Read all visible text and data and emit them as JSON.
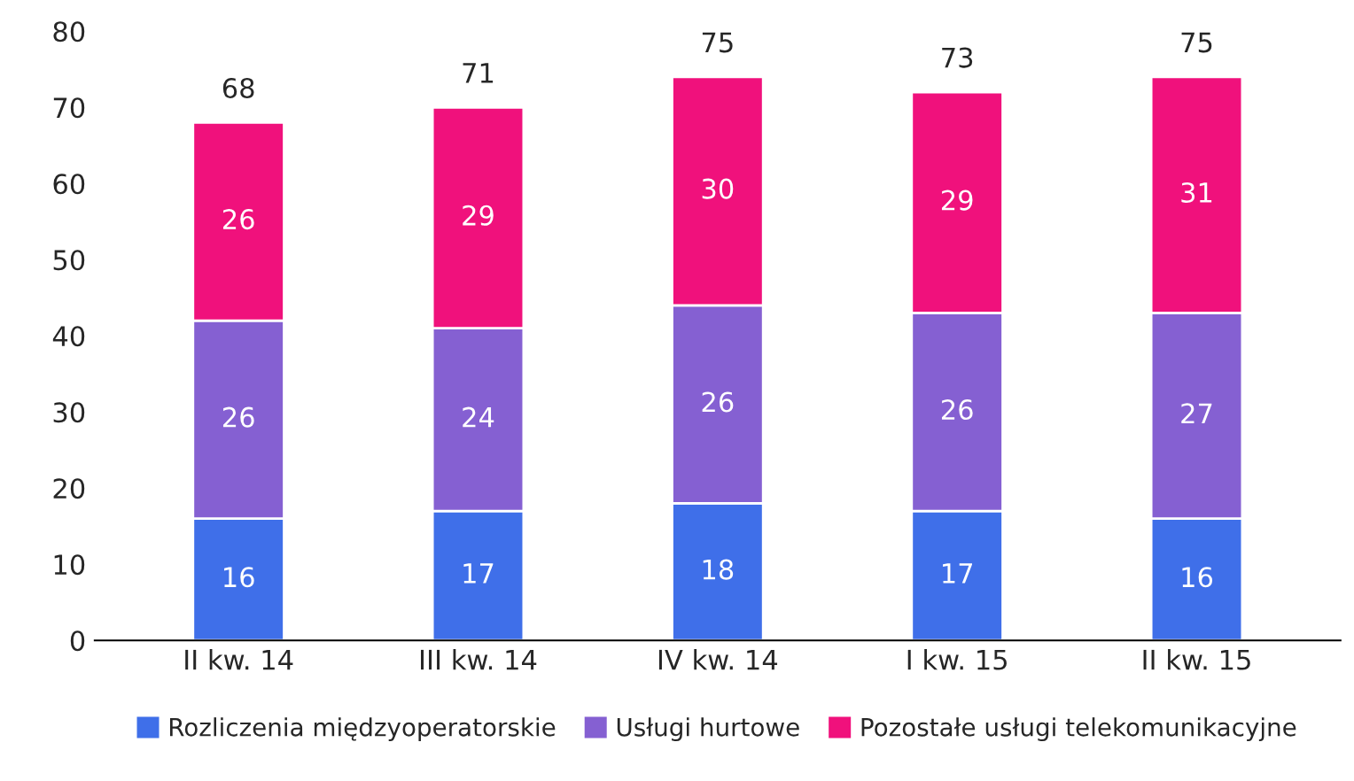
{
  "chart_data": {
    "type": "bar",
    "stacked": true,
    "categories": [
      "II kw. 14",
      "III kw. 14",
      "IV kw. 14",
      "I kw. 15",
      "II kw. 15"
    ],
    "series": [
      {
        "name": "Rozliczenia międzyoperatorskie",
        "color": "#3f6fe9",
        "values": [
          16,
          17,
          18,
          17,
          16
        ]
      },
      {
        "name": "Usługi hurtowe",
        "color": "#8560d2",
        "values": [
          26,
          24,
          26,
          26,
          27
        ]
      },
      {
        "name": "Pozostałe usługi telekomunikacyjne",
        "color": "#f0117c",
        "values": [
          26,
          29,
          30,
          29,
          31
        ]
      }
    ],
    "totals": [
      "68",
      "71",
      "75",
      "73",
      "75"
    ],
    "data_labels": true,
    "ylim": [
      0,
      80
    ],
    "yticks": [
      0,
      10,
      20,
      30,
      40,
      50,
      60,
      70,
      80
    ],
    "grid": false,
    "legend": "bottom"
  }
}
